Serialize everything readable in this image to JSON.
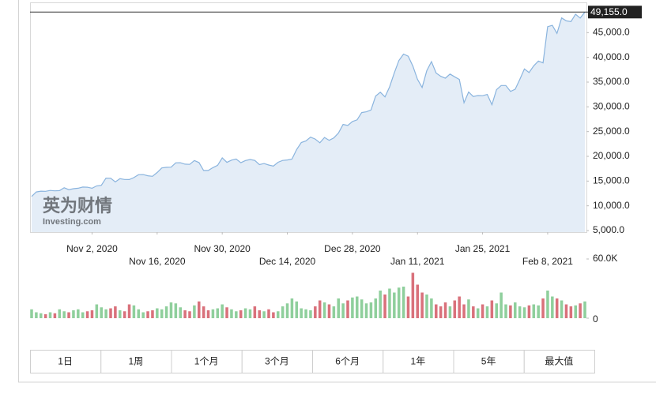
{
  "chart_data": {
    "type": "area",
    "title": null,
    "watermark": "英为财情",
    "watermark_sub": "Investing.com",
    "x": [
      "2020-10-20",
      "2020-10-21",
      "2020-10-22",
      "2020-10-23",
      "2020-10-24",
      "2020-10-25",
      "2020-10-26",
      "2020-10-27",
      "2020-10-28",
      "2020-10-29",
      "2020-10-30",
      "2020-10-31",
      "2020-11-01",
      "2020-11-02",
      "2020-11-03",
      "2020-11-04",
      "2020-11-05",
      "2020-11-06",
      "2020-11-07",
      "2020-11-08",
      "2020-11-09",
      "2020-11-10",
      "2020-11-11",
      "2020-11-12",
      "2020-11-13",
      "2020-11-14",
      "2020-11-15",
      "2020-11-16",
      "2020-11-17",
      "2020-11-18",
      "2020-11-19",
      "2020-11-20",
      "2020-11-21",
      "2020-11-22",
      "2020-11-23",
      "2020-11-24",
      "2020-11-25",
      "2020-11-26",
      "2020-11-27",
      "2020-11-28",
      "2020-11-29",
      "2020-11-30",
      "2020-12-01",
      "2020-12-02",
      "2020-12-03",
      "2020-12-04",
      "2020-12-05",
      "2020-12-06",
      "2020-12-07",
      "2020-12-08",
      "2020-12-09",
      "2020-12-10",
      "2020-12-11",
      "2020-12-12",
      "2020-12-13",
      "2020-12-14",
      "2020-12-15",
      "2020-12-16",
      "2020-12-17",
      "2020-12-18",
      "2020-12-19",
      "2020-12-20",
      "2020-12-21",
      "2020-12-22",
      "2020-12-23",
      "2020-12-24",
      "2020-12-25",
      "2020-12-26",
      "2020-12-27",
      "2020-12-28",
      "2020-12-29",
      "2020-12-30",
      "2020-12-31",
      "2021-01-01",
      "2021-01-02",
      "2021-01-03",
      "2021-01-04",
      "2021-01-05",
      "2021-01-06",
      "2021-01-07",
      "2021-01-08",
      "2021-01-09",
      "2021-01-10",
      "2021-01-11",
      "2021-01-12",
      "2021-01-13",
      "2021-01-14",
      "2021-01-15",
      "2021-01-16",
      "2021-01-17",
      "2021-01-18",
      "2021-01-19",
      "2021-01-20",
      "2021-01-21",
      "2021-01-22",
      "2021-01-23",
      "2021-01-24",
      "2021-01-25",
      "2021-01-26",
      "2021-01-27",
      "2021-01-28",
      "2021-01-29",
      "2021-01-30",
      "2021-01-31",
      "2021-02-01",
      "2021-02-02",
      "2021-02-03",
      "2021-02-04",
      "2021-02-05",
      "2021-02-06",
      "2021-02-07",
      "2021-02-08",
      "2021-02-09",
      "2021-02-10",
      "2021-02-11",
      "2021-02-12",
      "2021-02-13",
      "2021-02-14",
      "2021-02-15",
      "2021-02-16"
    ],
    "xlim": [
      "2020-10-20",
      "2021-02-16"
    ],
    "xticks": [
      {
        "value": "2020-11-02",
        "label": "Nov 2, 2020"
      },
      {
        "value": "2020-11-16",
        "label": "Nov 16, 2020"
      },
      {
        "value": "2020-11-30",
        "label": "Nov 30, 2020"
      },
      {
        "value": "2020-12-14",
        "label": "Dec 14, 2020"
      },
      {
        "value": "2020-12-28",
        "label": "Dec 28, 2020"
      },
      {
        "value": "2021-01-11",
        "label": "Jan 11, 2021"
      },
      {
        "value": "2021-01-25",
        "label": "Jan 25, 2021"
      },
      {
        "value": "2021-02-08",
        "label": "Feb 8, 2021"
      }
    ],
    "series": [
      {
        "name": "price",
        "color": "#8ab4de",
        "fill": "#e4edf7",
        "values": [
          11900,
          12800,
          12970,
          12930,
          13100,
          13030,
          13070,
          13650,
          13270,
          13450,
          13560,
          13800,
          13760,
          13550,
          14030,
          14150,
          15590,
          15580,
          14830,
          15480,
          15330,
          15310,
          15700,
          16290,
          16320,
          16070,
          15960,
          16730,
          17660,
          17780,
          17820,
          18690,
          18700,
          18420,
          18370,
          19160,
          18740,
          17150,
          17140,
          17720,
          18180,
          19700,
          18790,
          19230,
          19450,
          18700,
          19150,
          19360,
          19170,
          18320,
          18550,
          18250,
          18040,
          18800,
          19170,
          19270,
          19440,
          21380,
          22800,
          23110,
          23870,
          23490,
          22750,
          23820,
          23240,
          23730,
          24710,
          26440,
          26250,
          27040,
          27370,
          28840,
          29000,
          29370,
          32190,
          32960,
          32020,
          34030,
          36820,
          39370,
          40670,
          40240,
          38240,
          35570,
          33910,
          37320,
          39150,
          36830,
          36180,
          35790,
          36630,
          36070,
          35550,
          30830,
          33010,
          32100,
          32290,
          32250,
          32510,
          30430,
          33470,
          34320,
          34320,
          33110,
          33540,
          35510,
          37670,
          36930,
          38290,
          39260,
          38900,
          46200,
          46480,
          44840,
          47970,
          47390,
          47240,
          48720,
          47940,
          49155
        ],
        "last_label": "49,155.0"
      },
      {
        "name": "volume",
        "type": "bar",
        "axis": "y2",
        "up_color": "#8fcf9c",
        "down_color": "#d9717b",
        "values": [
          9000,
          6000,
          5000,
          4000,
          6000,
          5000,
          9000,
          7000,
          6000,
          8000,
          9000,
          6000,
          7000,
          8000,
          14000,
          11000,
          9000,
          10000,
          12000,
          8000,
          7000,
          14000,
          13000,
          9000,
          6000,
          7000,
          8000,
          10000,
          9000,
          12000,
          16000,
          15000,
          11000,
          8000,
          7000,
          13000,
          17000,
          12000,
          8000,
          9000,
          10000,
          14000,
          11000,
          9000,
          7000,
          8000,
          10000,
          9000,
          12000,
          8000,
          7000,
          9000,
          6000,
          7000,
          12000,
          15000,
          20000,
          17000,
          10000,
          9000,
          8000,
          12000,
          18000,
          16000,
          14000,
          12000,
          20000,
          15000,
          18000,
          21000,
          22000,
          19000,
          15000,
          16000,
          20000,
          28000,
          24000,
          30000,
          26000,
          31000,
          32000,
          22000,
          46000,
          34000,
          26000,
          24000,
          20000,
          14000,
          12000,
          16000,
          12000,
          18000,
          22000,
          14000,
          19000,
          12000,
          10000,
          14000,
          12000,
          18000,
          15000,
          26000,
          14000,
          13000,
          16000,
          12000,
          11000,
          13000,
          14000,
          13000,
          20000,
          28000,
          22000,
          20000,
          18000,
          14000,
          12000,
          13000,
          15000,
          17000
        ]
      }
    ],
    "ylim": [
      5000,
      50000
    ],
    "yticks": [
      {
        "value": 5000,
        "label": "5,000.0"
      },
      {
        "value": 10000,
        "label": "10,000.0"
      },
      {
        "value": 15000,
        "label": "15,000.0"
      },
      {
        "value": 20000,
        "label": "20,000.0"
      },
      {
        "value": 25000,
        "label": "25,000.0"
      },
      {
        "value": 30000,
        "label": "30,000.0"
      },
      {
        "value": 35000,
        "label": "35,000.0"
      },
      {
        "value": 40000,
        "label": "40,000.0"
      },
      {
        "value": 45000,
        "label": "45,000.0"
      }
    ],
    "y2lim": [
      0,
      60000
    ],
    "y2ticks": [
      0,
      {
        "value": 60000,
        "label": "60.0K"
      }
    ],
    "grid": false,
    "range_buttons": [
      "1日",
      "1周",
      "1个月",
      "3个月",
      "6个月",
      "1年",
      "5年",
      "最大值"
    ]
  }
}
